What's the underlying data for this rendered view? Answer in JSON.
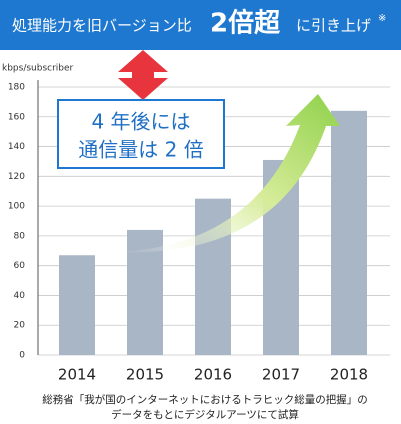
{
  "chart_data": {
    "type": "bar",
    "title": "処理能力を旧バージョン比",
    "title_emphasis": "2倍超",
    "title_suffix": "に引き上げ",
    "title_mark": "※",
    "y_label": "kbps/subscriber",
    "annotation": [
      "4 年後には",
      "通信量は 2 倍"
    ],
    "note": [
      "総務省「我が国のインターネットにおけるトラヒック総量の把握」の",
      "データをもとにデジタルアーツにて試算"
    ],
    "categories": [
      "2014",
      "2015",
      "2016",
      "2017",
      "2018"
    ],
    "values": [
      67,
      84,
      105,
      131,
      164
    ],
    "color": "#a9b6c6",
    "ylim": [
      0,
      180
    ],
    "yticks": [
      0,
      20,
      40,
      60,
      80,
      100,
      120,
      140,
      160,
      180
    ],
    "grid": true
  }
}
